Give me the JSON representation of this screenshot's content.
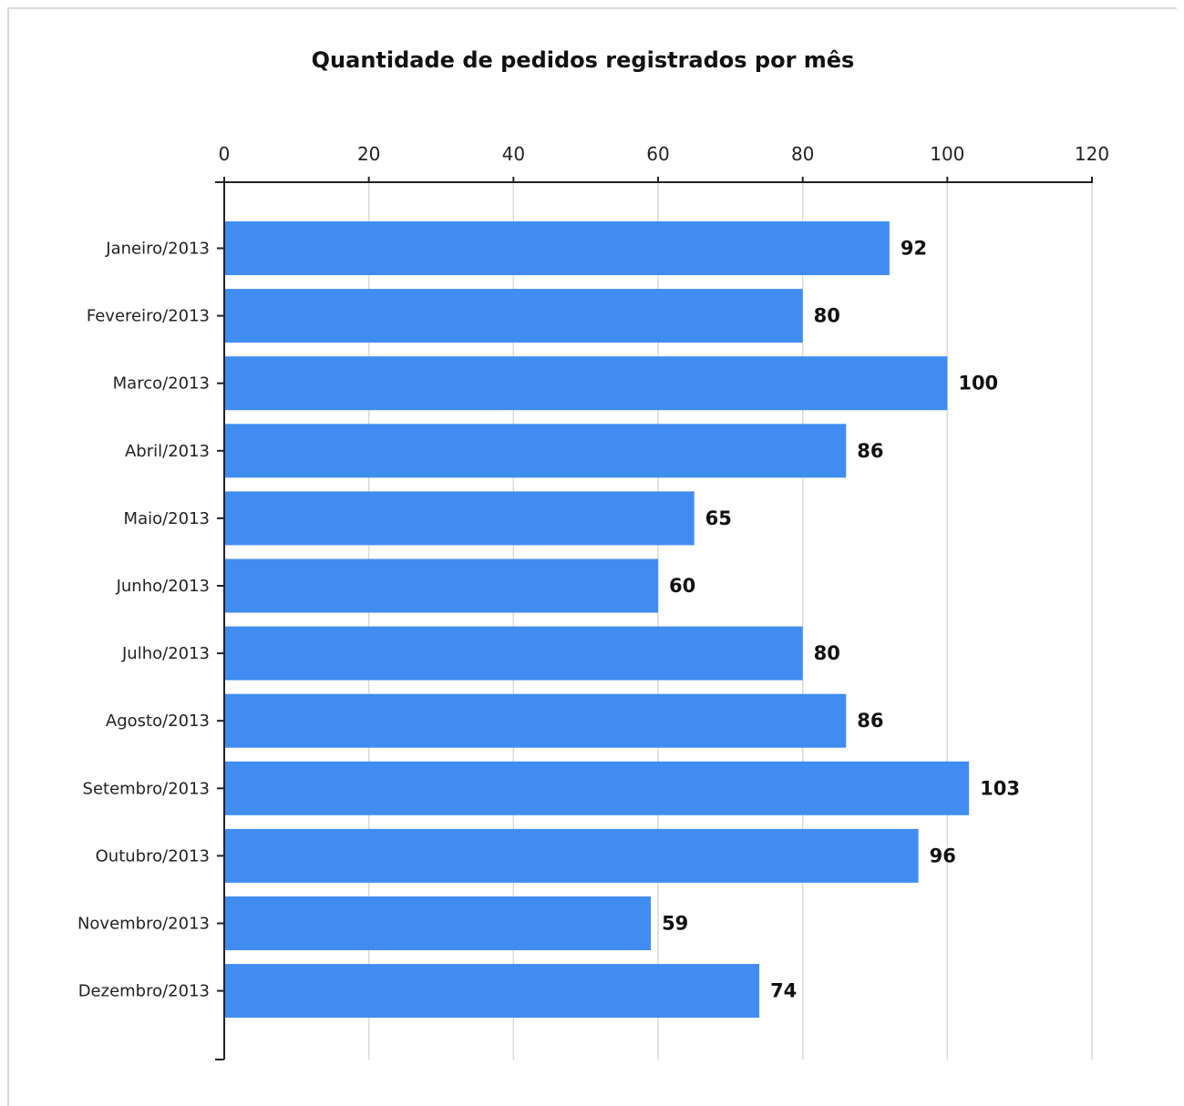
{
  "chart_data": {
    "type": "bar",
    "orientation": "horizontal",
    "title": "Quantidade de pedidos registrados por mês",
    "xlabel": "",
    "ylabel": "",
    "xlim": [
      0,
      120
    ],
    "x_ticks": [
      0,
      20,
      40,
      60,
      80,
      100,
      120
    ],
    "x_axis_position": "top",
    "grid": "vertical",
    "bar_color": "#418cf0",
    "data_labels": true,
    "categories": [
      "Janeiro/2013",
      "Fevereiro/2013",
      "Marco/2013",
      "Abril/2013",
      "Maio/2013",
      "Junho/2013",
      "Julho/2013",
      "Agosto/2013",
      "Setembro/2013",
      "Outubro/2013",
      "Novembro/2013",
      "Dezembro/2013"
    ],
    "values": [
      92,
      80,
      100,
      86,
      65,
      60,
      80,
      86,
      103,
      96,
      59,
      74
    ]
  }
}
